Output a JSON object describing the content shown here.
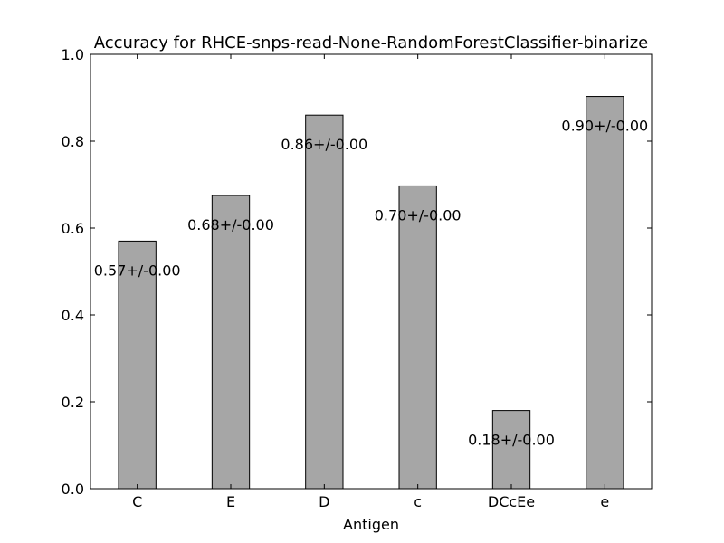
{
  "chart_data": {
    "type": "bar",
    "title": "Accuracy for RHCE-snps-read-None-RandomForestClassifier-binarize",
    "xlabel": "Antigen",
    "ylabel": "",
    "categories": [
      "C",
      "E",
      "D",
      "c",
      "DCcEe",
      "e"
    ],
    "values": [
      0.57,
      0.675,
      0.86,
      0.697,
      0.18,
      0.903
    ],
    "bar_labels": [
      "0.57+/-0.00",
      "0.68+/-0.00",
      "0.86+/-0.00",
      "0.70+/-0.00",
      "0.18+/-0.00",
      "0.90+/-0.00"
    ],
    "ylim": [
      0,
      1.0
    ],
    "yticks": [
      "0.0",
      "0.2",
      "0.4",
      "0.6",
      "0.8",
      "1.0"
    ],
    "grid": false,
    "bar_color": "#a6a6a6"
  }
}
